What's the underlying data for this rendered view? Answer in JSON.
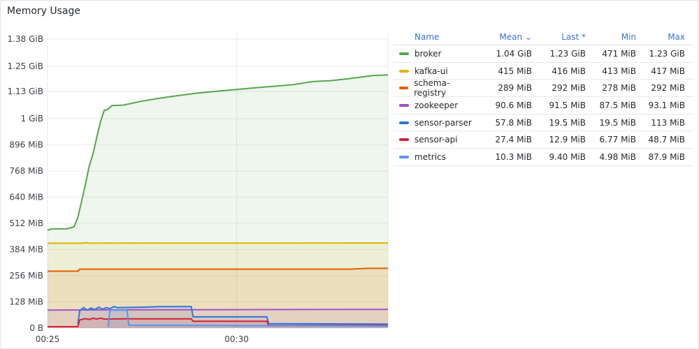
{
  "panel": {
    "title": "Memory Usage"
  },
  "legend": {
    "headers": {
      "name": "Name",
      "mean": "Mean ⌄",
      "last": "Last *",
      "min": "Min",
      "max": "Max"
    },
    "rows": [
      {
        "name": "broker",
        "color": "#56a64b",
        "mean": "1.04 GiB",
        "last": "1.23 GiB",
        "min": "471 MiB",
        "max": "1.23 GiB"
      },
      {
        "name": "kafka-ui",
        "color": "#e0b400",
        "mean": "415 MiB",
        "last": "416 MiB",
        "min": "413 MiB",
        "max": "417 MiB"
      },
      {
        "name": "schema-registry",
        "color": "#e55c00",
        "mean": "289 MiB",
        "last": "292 MiB",
        "min": "278 MiB",
        "max": "292 MiB"
      },
      {
        "name": "zookeeper",
        "color": "#a352cc",
        "mean": "90.6 MiB",
        "last": "91.5 MiB",
        "min": "87.5 MiB",
        "max": "93.1 MiB"
      },
      {
        "name": "sensor-parser",
        "color": "#3274d9",
        "mean": "57.8 MiB",
        "last": "19.5 MiB",
        "min": "19.5 MiB",
        "max": "113 MiB"
      },
      {
        "name": "sensor-api",
        "color": "#d3203b",
        "mean": "27.4 MiB",
        "last": "12.9 MiB",
        "min": "6.77 MiB",
        "max": "48.7 MiB"
      },
      {
        "name": "metrics",
        "color": "#5794f2",
        "mean": "10.3 MiB",
        "last": "9.40 MiB",
        "min": "4.98 MiB",
        "max": "87.9 MiB"
      }
    ]
  },
  "chart_data": {
    "type": "area",
    "title": "Memory Usage",
    "x_unit": "minutes",
    "x_range": [
      0,
      9
    ],
    "x_ticks": [
      {
        "label": "00:25",
        "value": 0
      },
      {
        "label": "00:30",
        "value": 5
      }
    ],
    "y_unit": "MiB",
    "y_range": [
      0,
      1413
    ],
    "y_ticks": [
      {
        "label": "0 B",
        "value": 0
      },
      {
        "label": "128 MiB",
        "value": 128
      },
      {
        "label": "256 MiB",
        "value": 256
      },
      {
        "label": "384 MiB",
        "value": 384
      },
      {
        "label": "512 MiB",
        "value": 512
      },
      {
        "label": "640 MiB",
        "value": 640
      },
      {
        "label": "768 MiB",
        "value": 768
      },
      {
        "label": "896 MiB",
        "value": 896
      },
      {
        "label": "1 GiB",
        "value": 1024
      },
      {
        "label": "1.13 GiB",
        "value": 1157
      },
      {
        "label": "1.25 GiB",
        "value": 1280
      },
      {
        "label": "1.38 GiB",
        "value": 1413
      }
    ],
    "grid": true,
    "legend_placement": "right",
    "series": [
      {
        "name": "broker",
        "color": "#56a64b",
        "points": [
          [
            0,
            478
          ],
          [
            0.1,
            485
          ],
          [
            0.5,
            485
          ],
          [
            0.7,
            495
          ],
          [
            0.8,
            540
          ],
          [
            0.9,
            620
          ],
          [
            1.0,
            700
          ],
          [
            1.1,
            790
          ],
          [
            1.2,
            850
          ],
          [
            1.3,
            930
          ],
          [
            1.4,
            1010
          ],
          [
            1.5,
            1065
          ],
          [
            1.6,
            1070
          ],
          [
            1.7,
            1088
          ],
          [
            2.0,
            1090
          ],
          [
            2.5,
            1110
          ],
          [
            3.0,
            1125
          ],
          [
            3.5,
            1138
          ],
          [
            4.0,
            1150
          ],
          [
            4.6,
            1160
          ],
          [
            5.5,
            1175
          ],
          [
            6.5,
            1190
          ],
          [
            7.0,
            1205
          ],
          [
            7.5,
            1210
          ],
          [
            8.0,
            1220
          ],
          [
            8.6,
            1235
          ],
          [
            9.0,
            1238
          ]
        ]
      },
      {
        "name": "kafka-ui",
        "color": "#e0b400",
        "points": [
          [
            0,
            415
          ],
          [
            0.9,
            415
          ],
          [
            1.0,
            417
          ],
          [
            1.1,
            415
          ],
          [
            9,
            416
          ]
        ]
      },
      {
        "name": "schema-registry",
        "color": "#e55c00",
        "points": [
          [
            0,
            278
          ],
          [
            0.8,
            278
          ],
          [
            0.85,
            288
          ],
          [
            4.0,
            288
          ],
          [
            8.0,
            288
          ],
          [
            8.5,
            292
          ],
          [
            9,
            292
          ]
        ]
      },
      {
        "name": "zookeeper",
        "color": "#a352cc",
        "points": [
          [
            0,
            88
          ],
          [
            2.0,
            89
          ],
          [
            5.0,
            90
          ],
          [
            9,
            91.5
          ]
        ]
      },
      {
        "name": "sensor-parser",
        "color": "#3274d9",
        "points": [
          [
            0.8,
            20
          ],
          [
            0.85,
            85
          ],
          [
            0.95,
            100
          ],
          [
            1.05,
            88
          ],
          [
            1.15,
            98
          ],
          [
            1.25,
            90
          ],
          [
            1.35,
            102
          ],
          [
            1.45,
            92
          ],
          [
            1.55,
            100
          ],
          [
            1.65,
            95
          ],
          [
            1.75,
            105
          ],
          [
            1.85,
            100
          ],
          [
            2.5,
            102
          ],
          [
            3.0,
            105
          ],
          [
            3.8,
            105
          ],
          [
            3.85,
            55
          ],
          [
            5.8,
            55
          ],
          [
            5.85,
            22
          ],
          [
            9,
            19.5
          ]
        ]
      },
      {
        "name": "sensor-api",
        "color": "#d3203b",
        "points": [
          [
            0,
            6.8
          ],
          [
            0.8,
            6.8
          ],
          [
            0.85,
            40
          ],
          [
            1.0,
            46
          ],
          [
            1.1,
            42
          ],
          [
            1.2,
            48
          ],
          [
            1.3,
            44
          ],
          [
            1.4,
            48.7
          ],
          [
            1.5,
            44
          ],
          [
            2.0,
            45
          ],
          [
            3.8,
            45
          ],
          [
            3.85,
            33
          ],
          [
            5.8,
            33
          ],
          [
            5.85,
            13
          ],
          [
            9,
            12.9
          ]
        ]
      },
      {
        "name": "metrics",
        "color": "#5794f2",
        "points": [
          [
            1.6,
            5
          ],
          [
            1.65,
            88
          ],
          [
            2.1,
            88
          ],
          [
            2.15,
            14
          ],
          [
            9,
            9.4
          ]
        ]
      }
    ]
  }
}
